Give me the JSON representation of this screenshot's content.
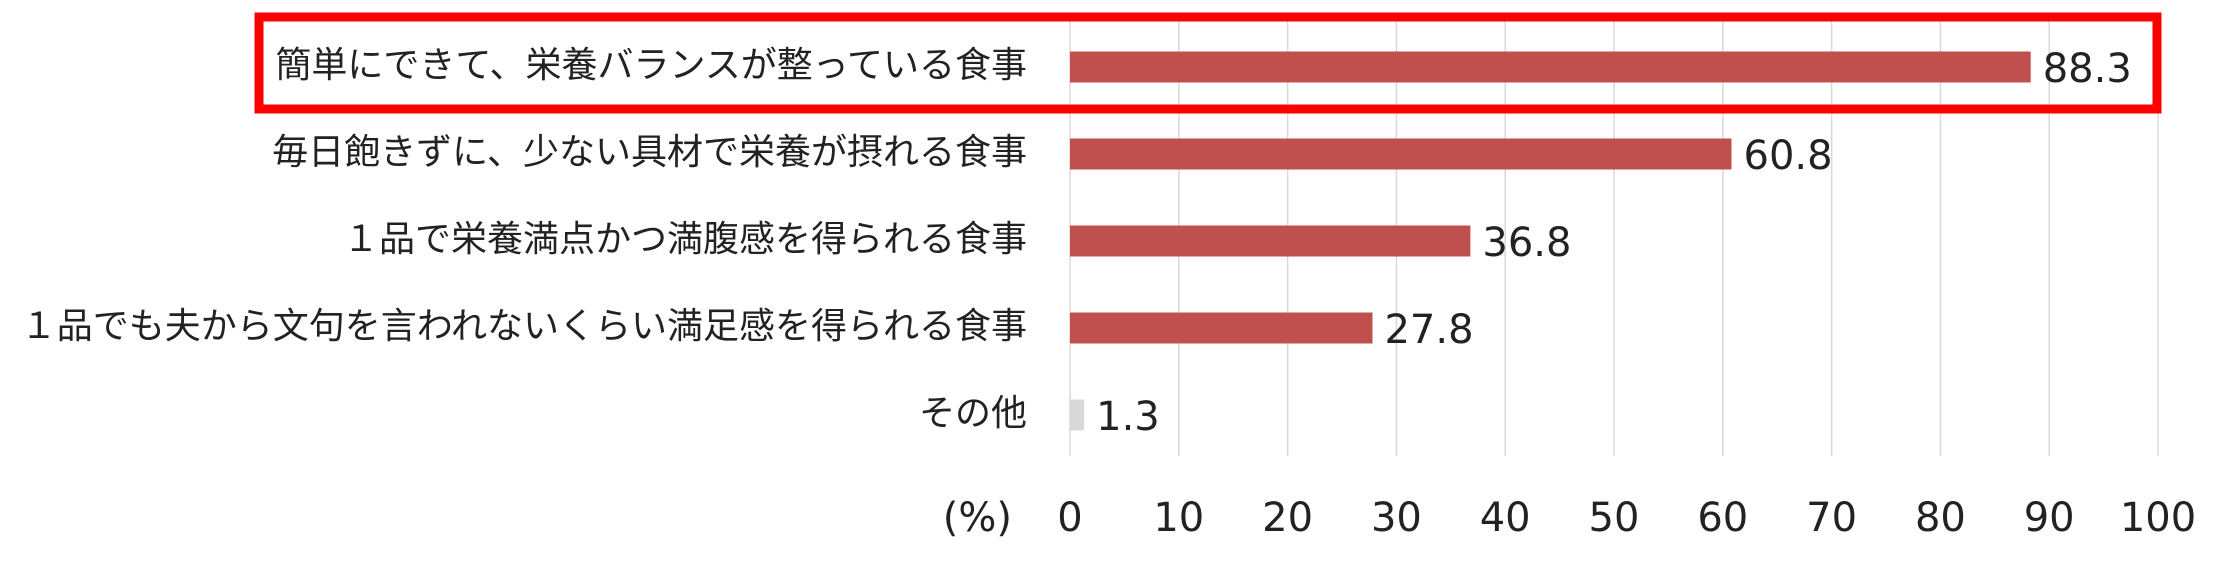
{
  "chart_data": {
    "type": "barh",
    "categories": [
      "簡単にできて、栄養バランスが整っている食事",
      "毎日飽きずに、少ない具材で栄養が摂れる食事",
      "１品で栄養満点かつ満腹感を得られる食事",
      "１品でも夫から文句を言われないくらい満足感を得られる食事",
      "その他"
    ],
    "values": [
      88.3,
      60.8,
      36.8,
      27.8,
      1.3
    ],
    "colors": [
      "#c0504d",
      "#c0504d",
      "#c0504d",
      "#c0504d",
      "#d9d9d9"
    ],
    "xlabel": "(%)",
    "xlim": [
      0,
      100
    ],
    "xticks": [
      0,
      10,
      20,
      30,
      40,
      50,
      60,
      70,
      80,
      90,
      100
    ],
    "grid": true
  }
}
